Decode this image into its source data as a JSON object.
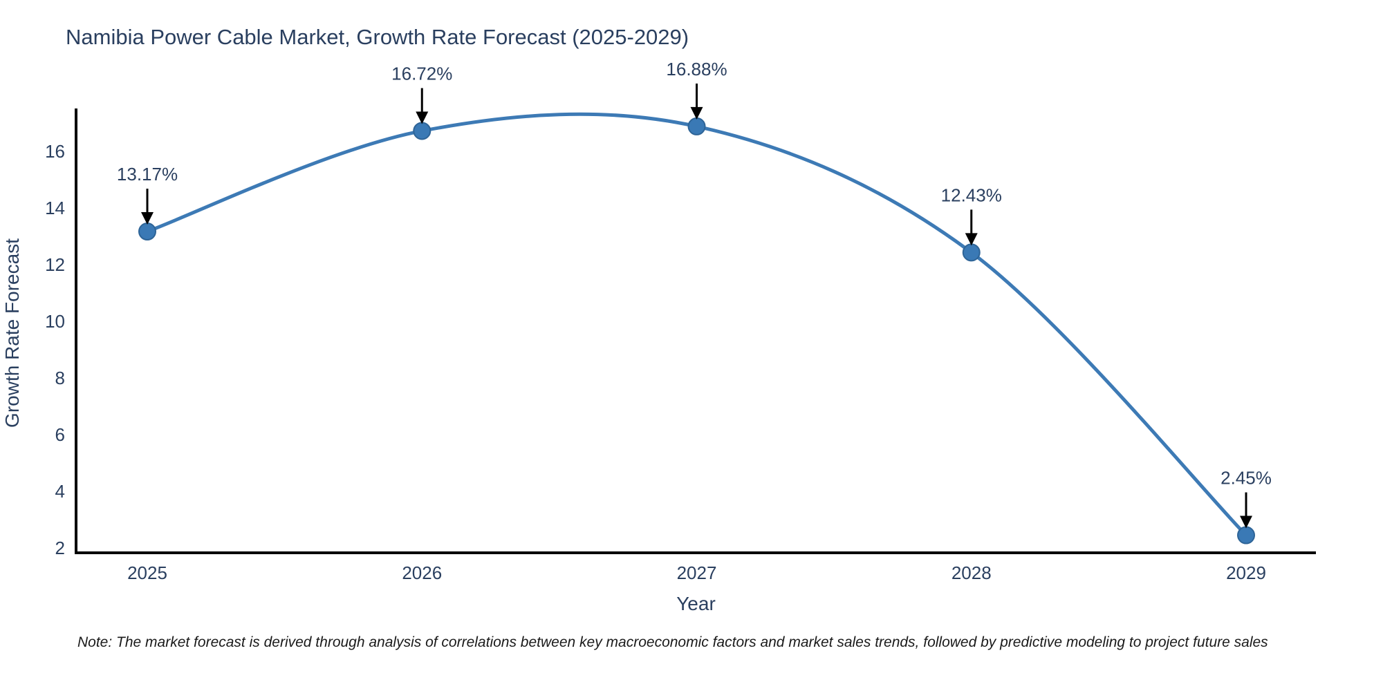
{
  "title": "Namibia Power Cable Market, Growth Rate Forecast (2025-2029)",
  "note": "Note: The market forecast is derived through analysis of correlations between key macroeconomic factors and market sales trends, followed by predictive modeling to project future sales",
  "chart_data": {
    "type": "line",
    "title": "Namibia Power Cable Market, Growth Rate Forecast (2025-2029)",
    "xlabel": "Year",
    "ylabel": "Growth Rate Forecast",
    "x": [
      2025,
      2026,
      2027,
      2028,
      2029
    ],
    "values": [
      13.17,
      16.72,
      16.88,
      12.43,
      2.45
    ],
    "point_labels": [
      "13.17%",
      "16.72%",
      "16.88%",
      "12.43%",
      "2.45%"
    ],
    "yticks": [
      2,
      4,
      6,
      8,
      10,
      12,
      14,
      16
    ],
    "ylim": [
      2,
      17.7
    ],
    "line_shape": "spline",
    "grid": false,
    "legend": "none",
    "colors": {
      "line": "#3d7ab5",
      "marker_fill": "#3a79b5",
      "marker_border": "#2e6497",
      "axis": "#000000",
      "tick_text": "#2a3f5f",
      "annotation_text": "#2a3f5f",
      "annotation_arrow": "#000000"
    }
  }
}
